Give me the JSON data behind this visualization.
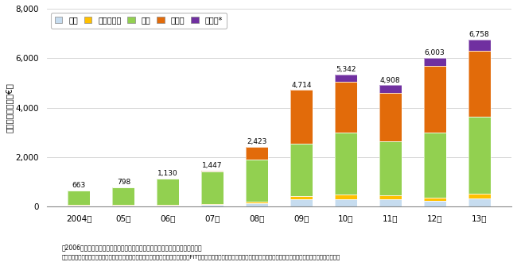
{
  "years": [
    "2004年",
    "05年",
    "06年",
    "07年",
    "08年",
    "09年",
    "10年",
    "11年",
    "12年",
    "13年"
  ],
  "totals": [
    663,
    798,
    1130,
    1447,
    2423,
    4714,
    5342,
    4908,
    6003,
    6758
  ],
  "seg_names": [
    "水力",
    "バイオマス",
    "風力",
    "太陽光",
    "太陽熱*"
  ],
  "segments": {
    "水力": [
      50,
      55,
      60,
      65,
      130,
      290,
      310,
      290,
      230,
      330
    ],
    "バイオマス": [
      20,
      25,
      30,
      40,
      80,
      150,
      180,
      160,
      150,
      200
    ],
    "風力": [
      590,
      715,
      1035,
      1335,
      1700,
      2100,
      2500,
      2200,
      2600,
      3100
    ],
    "太陽光": [
      3,
      3,
      5,
      7,
      513,
      2174,
      2052,
      1958,
      2723,
      2678
    ],
    "太陽熱*": [
      0,
      0,
      0,
      0,
      0,
      0,
      300,
      300,
      300,
      450
    ]
  },
  "colors": {
    "水力": "#c6dcef",
    "バイオマス": "#ffc000",
    "風力": "#92d050",
    "太陽光": "#e26b0a",
    "太陽熱*": "#7030a0"
  },
  "ylabel": "賦課金総額（百万€）",
  "ylim": [
    0,
    8000
  ],
  "ytick_labels": [
    "0",
    "2,000",
    "4,000",
    "6,000",
    "8,000"
  ],
  "ytick_vals": [
    0,
    2000,
    4000,
    6000,
    8000
  ],
  "note1": "＊2006年以前は，太陽熱と太陽光の区分がなく，太陽熱はすべて太陽光に合算。",
  "note2": "注：再生可能エネルギー由来の電源の買取によって生じる賦課金負担の総額であり，FIT制度で買取対象となる廃棄物やコージェネレーションの買取に要する費用は含まれていない。"
}
